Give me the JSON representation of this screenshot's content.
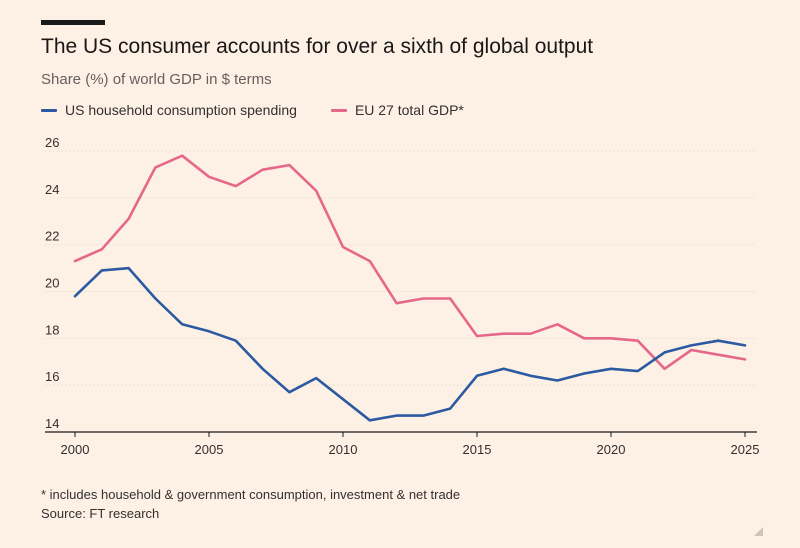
{
  "header": {
    "title": "The US consumer accounts for over a sixth of global output",
    "subtitle": "Share (%) of world GDP in $ terms"
  },
  "footer": {
    "footnote": "* includes household & government consumption, investment & net trade",
    "source": "Source: FT research"
  },
  "colors": {
    "background": "#fdf1e6",
    "us_series": "#2b5aa0",
    "eu_series": "#e66889",
    "grid": "#e6dbd0",
    "axis": "#1a1817"
  },
  "chart_data": {
    "type": "line",
    "title": "The US consumer accounts for over a sixth of global output",
    "subtitle": "Share (%) of world GDP in $ terms",
    "xlabel": "",
    "ylabel": "",
    "xlim": [
      2000,
      2025
    ],
    "ylim": [
      14,
      26
    ],
    "x_ticks": [
      2000,
      2005,
      2010,
      2015,
      2020,
      2025
    ],
    "y_ticks": [
      14,
      16,
      18,
      20,
      22,
      24,
      26
    ],
    "grid": "horizontal dotted",
    "legend_position": "top-left",
    "x": [
      2000,
      2001,
      2002,
      2003,
      2004,
      2005,
      2006,
      2007,
      2008,
      2009,
      2010,
      2011,
      2012,
      2013,
      2014,
      2015,
      2016,
      2017,
      2018,
      2019,
      2020,
      2021,
      2022,
      2023,
      2024,
      2025
    ],
    "series": [
      {
        "name": "US household consumption spending",
        "color": "#2b5aa0",
        "values": [
          19.8,
          20.9,
          21.0,
          19.7,
          18.6,
          18.3,
          17.9,
          16.7,
          15.7,
          16.3,
          15.4,
          14.5,
          14.7,
          14.7,
          15.0,
          16.4,
          16.7,
          16.4,
          16.2,
          16.5,
          16.7,
          16.6,
          17.4,
          17.7,
          17.9,
          17.7
        ]
      },
      {
        "name": "EU 27 total GDP*",
        "color": "#e66889",
        "values": [
          21.3,
          21.8,
          23.1,
          25.3,
          25.8,
          24.9,
          24.5,
          25.2,
          25.4,
          24.3,
          21.9,
          21.3,
          19.5,
          19.7,
          19.7,
          18.1,
          18.2,
          18.2,
          18.6,
          18.0,
          18.0,
          17.9,
          16.7,
          17.5,
          17.3,
          17.1
        ]
      }
    ]
  }
}
